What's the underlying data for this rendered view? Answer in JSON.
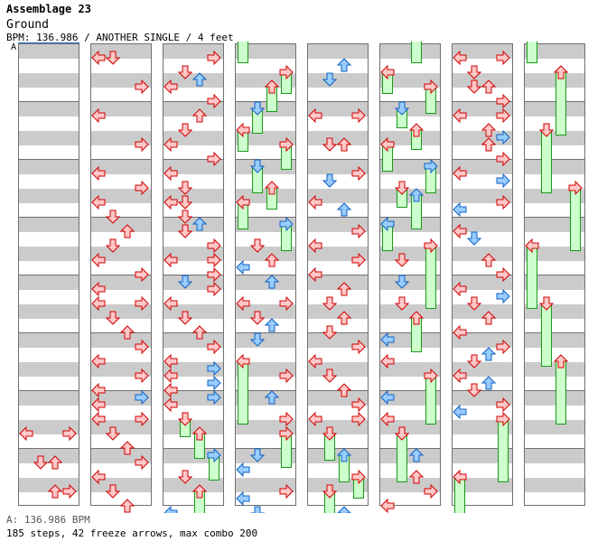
{
  "header": {
    "title": "Assemblage 23",
    "subtitle": "Ground",
    "info": "BPM: 136.986 / ANOTHER SINGLE / 4 feet"
  },
  "bpm_marker": {
    "label": "A"
  },
  "footer": {
    "bpm_line": "A: 136.986 BPM",
    "stats": "185 steps, 42 freeze arrows, max combo 200"
  },
  "colors": {
    "quarter": "#ffc8c8",
    "quarter_stroke": "#d00000",
    "eighth": "#99ccff",
    "eighth_stroke": "#1060c0",
    "freeze_fill": "#ccffcc",
    "freeze_stroke": "#1a9a1a",
    "stripe": "#cbcbcb"
  },
  "chart": {
    "measures_per_column": 8,
    "beats_per_measure": 4,
    "columns": [
      {
        "notes": [
          [
            "L",
            26.5,
            "q",
            0
          ],
          [
            "R",
            26.5,
            "q",
            0
          ],
          [
            "D",
            28.5,
            "q",
            0
          ],
          [
            "U",
            28.5,
            "q",
            0
          ],
          [
            "U",
            30.5,
            "q",
            0
          ],
          [
            "R",
            30.5,
            "q",
            0
          ]
        ]
      },
      {
        "notes": [
          [
            "L",
            0.5,
            "q",
            0
          ],
          [
            "D",
            0.5,
            "q",
            0
          ],
          [
            "R",
            2.5,
            "q",
            0
          ],
          [
            "L",
            4.5,
            "q",
            0
          ],
          [
            "R",
            6.5,
            "q",
            0
          ],
          [
            "L",
            8.5,
            "q",
            0
          ],
          [
            "R",
            9.5,
            "q",
            0
          ],
          [
            "L",
            10.5,
            "q",
            0
          ],
          [
            "D",
            11.5,
            "q",
            0
          ],
          [
            "U",
            12.5,
            "q",
            0
          ],
          [
            "D",
            13.5,
            "q",
            0
          ],
          [
            "L",
            14.5,
            "q",
            0
          ],
          [
            "R",
            15.5,
            "q",
            0
          ],
          [
            "L",
            16.5,
            "q",
            0
          ],
          [
            "L",
            17.5,
            "q",
            0
          ],
          [
            "R",
            17.5,
            "q",
            0
          ],
          [
            "D",
            18.5,
            "q",
            0
          ],
          [
            "U",
            19.5,
            "q",
            0
          ],
          [
            "R",
            20.5,
            "q",
            0
          ],
          [
            "L",
            21.5,
            "q",
            0
          ],
          [
            "R",
            22.5,
            "q",
            0
          ],
          [
            "L",
            23.5,
            "q",
            0
          ],
          [
            "R",
            24,
            "e",
            0
          ],
          [
            "L",
            24.5,
            "q",
            0
          ],
          [
            "L",
            25.5,
            "q",
            0
          ],
          [
            "R",
            25.5,
            "q",
            0
          ],
          [
            "D",
            26.5,
            "q",
            0
          ],
          [
            "U",
            27.5,
            "q",
            0
          ],
          [
            "R",
            28.5,
            "q",
            0
          ],
          [
            "L",
            29.5,
            "q",
            0
          ],
          [
            "D",
            30.5,
            "q",
            0
          ],
          [
            "U",
            31.5,
            "q",
            0
          ]
        ]
      },
      {
        "notes": [
          [
            "R",
            0.5,
            "q",
            0
          ],
          [
            "D",
            1.5,
            "q",
            0
          ],
          [
            "U",
            2,
            "e",
            0
          ],
          [
            "L",
            2.5,
            "q",
            0
          ],
          [
            "R",
            3.5,
            "q",
            0
          ],
          [
            "U",
            4.5,
            "q",
            0
          ],
          [
            "D",
            5.5,
            "q",
            0
          ],
          [
            "L",
            6.5,
            "q",
            0
          ],
          [
            "R",
            7.5,
            "q",
            0
          ],
          [
            "L",
            8.5,
            "q",
            0
          ],
          [
            "D",
            9.5,
            "q",
            0
          ],
          [
            "L",
            10.5,
            "q",
            0
          ],
          [
            "D",
            10.5,
            "q",
            0
          ],
          [
            "D",
            11.5,
            "q",
            0
          ],
          [
            "U",
            12,
            "e",
            0
          ],
          [
            "D",
            12.5,
            "q",
            0
          ],
          [
            "R",
            13.5,
            "q",
            0
          ],
          [
            "L",
            14.5,
            "q",
            0
          ],
          [
            "R",
            14.5,
            "q",
            0
          ],
          [
            "R",
            15.5,
            "q",
            0
          ],
          [
            "D",
            16,
            "e",
            0
          ],
          [
            "R",
            16.5,
            "q",
            0
          ],
          [
            "L",
            17.5,
            "q",
            0
          ],
          [
            "D",
            18.5,
            "q",
            0
          ],
          [
            "U",
            19.5,
            "q",
            0
          ],
          [
            "R",
            20.5,
            "q",
            0
          ],
          [
            "L",
            21.5,
            "q",
            0
          ],
          [
            "R",
            22,
            "e",
            0
          ],
          [
            "L",
            22.5,
            "q",
            0
          ],
          [
            "R",
            23,
            "e",
            0
          ],
          [
            "L",
            23.5,
            "q",
            0
          ],
          [
            "R",
            24,
            "e",
            0
          ],
          [
            "L",
            24.5,
            "q",
            0
          ],
          [
            "D",
            25.5,
            "q",
            1.25
          ],
          [
            "U",
            26.5,
            "q",
            1.75
          ],
          [
            "R",
            28,
            "e",
            1.75
          ],
          [
            "D",
            29.5,
            "q",
            0
          ],
          [
            "U",
            30.5,
            "q",
            1.75
          ],
          [
            "L",
            32,
            "e",
            1
          ]
        ]
      },
      {
        "notes": [
          [
            "L",
            -1,
            "q",
            1.9
          ],
          [
            "R",
            1.5,
            "q",
            1.5
          ],
          [
            "U",
            2.5,
            "q",
            1.75
          ],
          [
            "D",
            4,
            "e",
            1.75
          ],
          [
            "L",
            5.5,
            "q",
            1.5
          ],
          [
            "R",
            6.5,
            "q",
            1.75
          ],
          [
            "D",
            8,
            "e",
            1.9
          ],
          [
            "U",
            9.5,
            "q",
            1.5
          ],
          [
            "L",
            10.5,
            "q",
            1.9
          ],
          [
            "R",
            12,
            "e",
            1.9
          ],
          [
            "D",
            13.5,
            "q",
            0
          ],
          [
            "U",
            14.5,
            "q",
            0
          ],
          [
            "L",
            15,
            "e",
            0
          ],
          [
            "U",
            16,
            "e",
            0
          ],
          [
            "L",
            17.5,
            "q",
            0
          ],
          [
            "R",
            17.5,
            "q",
            0
          ],
          [
            "D",
            18.5,
            "q",
            0
          ],
          [
            "U",
            19,
            "e",
            0
          ],
          [
            "D",
            20,
            "e",
            0
          ],
          [
            "L",
            21.5,
            "q",
            4.4
          ],
          [
            "R",
            22.5,
            "q",
            0
          ],
          [
            "U",
            24,
            "e",
            0
          ],
          [
            "R",
            25.5,
            "q",
            0
          ],
          [
            "R",
            26.5,
            "q",
            2.4
          ],
          [
            "D",
            28,
            "e",
            0
          ],
          [
            "L",
            29,
            "e",
            0
          ],
          [
            "R",
            30.5,
            "q",
            0
          ],
          [
            "L",
            31,
            "e",
            0
          ],
          [
            "D",
            32,
            "e",
            0
          ]
        ]
      },
      {
        "notes": [
          [
            "U",
            1,
            "e",
            0
          ],
          [
            "D",
            2,
            "e",
            0
          ],
          [
            "L",
            4.5,
            "q",
            0
          ],
          [
            "R",
            4.5,
            "q",
            0
          ],
          [
            "D",
            6.5,
            "q",
            0
          ],
          [
            "U",
            6.5,
            "q",
            0
          ],
          [
            "R",
            8.5,
            "q",
            0
          ],
          [
            "D",
            9,
            "e",
            0
          ],
          [
            "L",
            10.5,
            "q",
            0
          ],
          [
            "U",
            11,
            "e",
            0
          ],
          [
            "R",
            12.5,
            "q",
            0
          ],
          [
            "L",
            13.5,
            "q",
            0
          ],
          [
            "R",
            14.5,
            "q",
            0
          ],
          [
            "L",
            15.5,
            "q",
            0
          ],
          [
            "U",
            16.5,
            "q",
            0
          ],
          [
            "D",
            17.5,
            "q",
            0
          ],
          [
            "U",
            18.5,
            "q",
            0
          ],
          [
            "D",
            19.5,
            "q",
            0
          ],
          [
            "R",
            20.5,
            "q",
            0
          ],
          [
            "L",
            21.5,
            "q",
            0
          ],
          [
            "D",
            22.5,
            "q",
            0
          ],
          [
            "U",
            23.5,
            "q",
            0
          ],
          [
            "R",
            24.5,
            "q",
            0
          ],
          [
            "L",
            25.5,
            "q",
            0
          ],
          [
            "R",
            25.5,
            "q",
            0
          ],
          [
            "D",
            26.5,
            "q",
            1.9
          ],
          [
            "U",
            28,
            "e",
            1.9
          ],
          [
            "R",
            29.5,
            "q",
            1.5
          ],
          [
            "D",
            30.5,
            "q",
            1.9
          ],
          [
            "U",
            32,
            "e",
            1
          ]
        ]
      },
      {
        "notes": [
          [
            "U",
            -1,
            "q",
            1.9
          ],
          [
            "L",
            1.5,
            "q",
            1.5
          ],
          [
            "R",
            2.5,
            "q",
            1.9
          ],
          [
            "D",
            4,
            "e",
            1.4
          ],
          [
            "U",
            5.5,
            "q",
            1.4
          ],
          [
            "L",
            6.5,
            "q",
            1.9
          ],
          [
            "R",
            8,
            "e",
            1.9
          ],
          [
            "D",
            9.5,
            "q",
            1.4
          ],
          [
            "U",
            10,
            "e",
            2.4
          ],
          [
            "L",
            12,
            "e",
            1.9
          ],
          [
            "R",
            13.5,
            "q",
            4.4
          ],
          [
            "D",
            14.5,
            "q",
            0
          ],
          [
            "D",
            16,
            "e",
            0
          ],
          [
            "D",
            17.5,
            "q",
            0
          ],
          [
            "U",
            18.5,
            "q",
            2.4
          ],
          [
            "L",
            20,
            "e",
            0
          ],
          [
            "L",
            21.5,
            "q",
            0
          ],
          [
            "R",
            22.5,
            "q",
            3.4
          ],
          [
            "L",
            24,
            "e",
            0
          ],
          [
            "L",
            25.5,
            "q",
            0
          ],
          [
            "D",
            26.5,
            "q",
            3.4
          ],
          [
            "U",
            28,
            "e",
            0
          ],
          [
            "U",
            29.5,
            "q",
            0
          ],
          [
            "R",
            30.5,
            "q",
            0
          ],
          [
            "L",
            31.5,
            "q",
            0
          ]
        ]
      },
      {
        "notes": [
          [
            "L",
            0.5,
            "q",
            0
          ],
          [
            "R",
            0.5,
            "q",
            0
          ],
          [
            "D",
            1.5,
            "q",
            0
          ],
          [
            "D",
            2.5,
            "q",
            0
          ],
          [
            "U",
            2.5,
            "q",
            0
          ],
          [
            "R",
            3.5,
            "q",
            0
          ],
          [
            "L",
            4.5,
            "q",
            0
          ],
          [
            "R",
            4.5,
            "q",
            0
          ],
          [
            "U",
            5.5,
            "q",
            0
          ],
          [
            "R",
            6,
            "e",
            0
          ],
          [
            "U",
            6.5,
            "q",
            0
          ],
          [
            "R",
            7.5,
            "q",
            0
          ],
          [
            "L",
            8.5,
            "q",
            0
          ],
          [
            "R",
            9,
            "e",
            0
          ],
          [
            "R",
            10.5,
            "q",
            0
          ],
          [
            "L",
            11,
            "e",
            0
          ],
          [
            "L",
            12.5,
            "q",
            0
          ],
          [
            "D",
            13,
            "e",
            0
          ],
          [
            "U",
            14.5,
            "q",
            0
          ],
          [
            "R",
            15.5,
            "q",
            0
          ],
          [
            "L",
            16.5,
            "q",
            0
          ],
          [
            "R",
            17,
            "e",
            0
          ],
          [
            "D",
            17.5,
            "q",
            0
          ],
          [
            "U",
            18.5,
            "q",
            0
          ],
          [
            "L",
            19.5,
            "q",
            0
          ],
          [
            "R",
            20.5,
            "q",
            0
          ],
          [
            "U",
            21,
            "e",
            0
          ],
          [
            "D",
            21.5,
            "q",
            0
          ],
          [
            "L",
            22.5,
            "q",
            0
          ],
          [
            "U",
            23,
            "e",
            0
          ],
          [
            "D",
            23.5,
            "q",
            0
          ],
          [
            "R",
            24.5,
            "q",
            0
          ],
          [
            "L",
            25,
            "e",
            0
          ],
          [
            "R",
            25.5,
            "q",
            4.4
          ],
          [
            "L",
            29.5,
            "q",
            3
          ]
        ]
      },
      {
        "notes": [
          [
            "L",
            -1,
            "q",
            1.9
          ],
          [
            "U",
            1.5,
            "q",
            4.4
          ],
          [
            "D",
            5.5,
            "q",
            4.4
          ],
          [
            "R",
            9.5,
            "q",
            4.4
          ],
          [
            "L",
            13.5,
            "q",
            4.4
          ],
          [
            "D",
            17.5,
            "q",
            4.4
          ],
          [
            "U",
            21.5,
            "q",
            4.4
          ]
        ]
      }
    ]
  }
}
